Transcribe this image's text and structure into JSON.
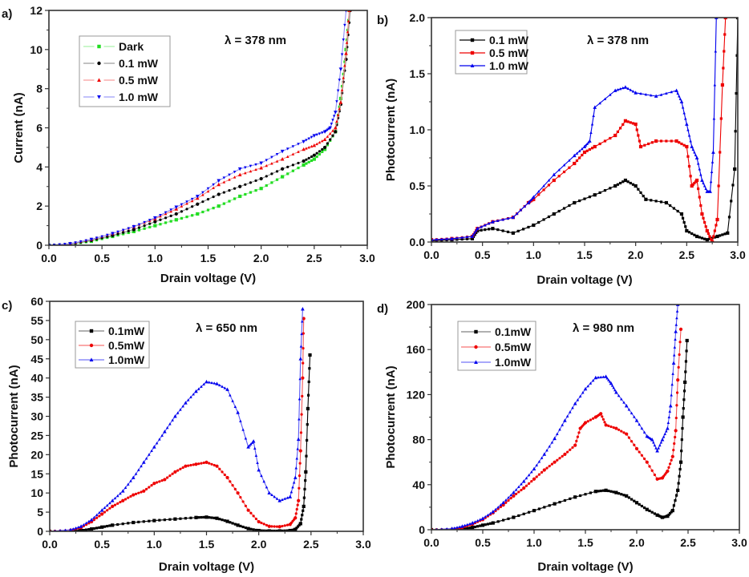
{
  "chart_data": [
    {
      "panel": "a)",
      "type": "line",
      "title": "",
      "annotation": "λ = 378 nm",
      "xlabel": "Drain voltage (V)",
      "ylabel": "Current (nA)",
      "xlim": [
        0,
        3.0
      ],
      "ylim": [
        0,
        12
      ],
      "xticks": [
        "0.0",
        "0.5",
        "1.0",
        "1.5",
        "2.0",
        "2.5",
        "3.0"
      ],
      "yticks": [
        "0",
        "2",
        "4",
        "6",
        "8",
        "10",
        "12"
      ],
      "xtick_values": [
        0,
        0.5,
        1.0,
        1.5,
        2.0,
        2.5,
        3.0
      ],
      "ytick_values": [
        0,
        2,
        4,
        6,
        8,
        10,
        12
      ],
      "grid": false,
      "legend_position": "top-left",
      "series": [
        {
          "name": "Dark",
          "color": "#22dd22",
          "marker": "square",
          "x": [
            0,
            0.2,
            0.4,
            0.6,
            0.8,
            1.0,
            1.2,
            1.4,
            1.6,
            1.8,
            2.0,
            2.2,
            2.4,
            2.5,
            2.6,
            2.7,
            2.75,
            2.8,
            2.83
          ],
          "y": [
            0,
            0.05,
            0.2,
            0.45,
            0.7,
            1.0,
            1.3,
            1.6,
            2.0,
            2.5,
            2.9,
            3.5,
            4.1,
            4.4,
            4.9,
            5.8,
            7.5,
            10.0,
            12.0
          ]
        },
        {
          "name": "0.1 mW",
          "color": "#000000",
          "marker": "circle",
          "x": [
            0,
            0.2,
            0.4,
            0.6,
            0.8,
            1.0,
            1.2,
            1.4,
            1.6,
            1.8,
            2.0,
            2.2,
            2.4,
            2.5,
            2.6,
            2.7,
            2.75,
            2.8,
            2.84
          ],
          "y": [
            0,
            0.05,
            0.25,
            0.5,
            0.8,
            1.2,
            1.6,
            2.1,
            2.6,
            3.0,
            3.4,
            3.9,
            4.3,
            4.6,
            5.0,
            5.8,
            7.2,
            9.5,
            12.0
          ]
        },
        {
          "name": "0.5 mW",
          "color": "#ee0000",
          "marker": "triangle-up",
          "x": [
            0,
            0.2,
            0.4,
            0.6,
            0.8,
            1.0,
            1.2,
            1.4,
            1.6,
            1.8,
            2.0,
            2.2,
            2.4,
            2.5,
            2.6,
            2.7,
            2.75,
            2.8,
            2.83
          ],
          "y": [
            0,
            0.08,
            0.3,
            0.6,
            0.95,
            1.35,
            1.85,
            2.4,
            3.1,
            3.6,
            3.95,
            4.4,
            4.9,
            5.1,
            5.4,
            6.0,
            7.3,
            9.8,
            12.0
          ]
        },
        {
          "name": "1.0 mW",
          "color": "#0000ee",
          "marker": "triangle-down",
          "x": [
            0,
            0.2,
            0.4,
            0.6,
            0.8,
            1.0,
            1.2,
            1.4,
            1.6,
            1.8,
            2.0,
            2.2,
            2.4,
            2.5,
            2.6,
            2.65,
            2.7,
            2.75,
            2.8
          ],
          "y": [
            0,
            0.08,
            0.3,
            0.6,
            0.95,
            1.4,
            1.95,
            2.5,
            3.3,
            3.9,
            4.2,
            4.8,
            5.3,
            5.6,
            5.8,
            6.0,
            6.8,
            9.0,
            12.0
          ]
        }
      ]
    },
    {
      "panel": "b)",
      "type": "line",
      "title": "",
      "annotation": "λ = 378 nm",
      "xlabel": "Drain voltage (V)",
      "ylabel": "Photocurrent (nA)",
      "xlim": [
        0,
        3.0
      ],
      "ylim": [
        0,
        2.0
      ],
      "xticks": [
        "0.0",
        "0.5",
        "1.0",
        "1.5",
        "2.0",
        "2.5",
        "3.0"
      ],
      "yticks": [
        "0.0",
        "0.5",
        "1.0",
        "1.5",
        "2.0"
      ],
      "xtick_values": [
        0,
        0.5,
        1.0,
        1.5,
        2.0,
        2.5,
        3.0
      ],
      "ytick_values": [
        0,
        0.5,
        1.0,
        1.5,
        2.0
      ],
      "grid": false,
      "legend_position": "top-left",
      "series": [
        {
          "name": "0.1 mW",
          "color": "#000000",
          "marker": "square",
          "x": [
            0,
            0.2,
            0.4,
            0.45,
            0.6,
            0.8,
            1.0,
            1.2,
            1.4,
            1.6,
            1.8,
            1.9,
            2.0,
            2.1,
            2.3,
            2.45,
            2.5,
            2.6,
            2.7,
            2.8,
            2.9,
            2.97,
            3.0
          ],
          "y": [
            0.01,
            0.02,
            0.03,
            0.1,
            0.12,
            0.08,
            0.15,
            0.25,
            0.35,
            0.42,
            0.5,
            0.55,
            0.5,
            0.38,
            0.35,
            0.25,
            0.1,
            0.05,
            0.02,
            0.05,
            0.08,
            0.65,
            2.0
          ]
        },
        {
          "name": "0.5 mW",
          "color": "#ee0000",
          "marker": "square",
          "x": [
            0,
            0.2,
            0.4,
            0.45,
            0.6,
            0.8,
            0.95,
            1.0,
            1.2,
            1.4,
            1.5,
            1.6,
            1.8,
            1.9,
            2.0,
            2.05,
            2.2,
            2.4,
            2.5,
            2.55,
            2.6,
            2.65,
            2.7,
            2.75,
            2.8,
            2.85,
            2.88
          ],
          "y": [
            0.02,
            0.03,
            0.05,
            0.12,
            0.18,
            0.22,
            0.35,
            0.38,
            0.55,
            0.7,
            0.8,
            0.85,
            0.95,
            1.08,
            1.05,
            0.85,
            0.9,
            0.9,
            0.85,
            0.5,
            0.55,
            0.25,
            0.1,
            0.0,
            0.2,
            1.4,
            2.0
          ]
        },
        {
          "name": "1.0 mW",
          "color": "#0000ee",
          "marker": "triangle-up",
          "x": [
            0,
            0.2,
            0.4,
            0.45,
            0.6,
            0.8,
            0.95,
            1.0,
            1.2,
            1.4,
            1.5,
            1.55,
            1.6,
            1.8,
            1.9,
            2.0,
            2.2,
            2.4,
            2.45,
            2.5,
            2.55,
            2.6,
            2.65,
            2.7,
            2.73,
            2.76,
            2.79
          ],
          "y": [
            0.02,
            0.03,
            0.05,
            0.12,
            0.18,
            0.22,
            0.35,
            0.4,
            0.6,
            0.77,
            0.85,
            0.9,
            1.2,
            1.35,
            1.38,
            1.33,
            1.3,
            1.35,
            1.25,
            1.05,
            0.85,
            0.75,
            0.55,
            0.45,
            0.45,
            0.8,
            2.0
          ]
        }
      ]
    },
    {
      "panel": "c)",
      "type": "line",
      "title": "",
      "annotation": "λ = 650 nm",
      "xlabel": "Drain voltage (V)",
      "ylabel": "Photocurrent (nA)",
      "xlim": [
        0,
        3.0
      ],
      "ylim": [
        0,
        60
      ],
      "xticks": [
        "0.0",
        "0.5",
        "1.0",
        "1.5",
        "2.0",
        "2.5",
        "3.0"
      ],
      "yticks": [
        "0",
        "5",
        "10",
        "15",
        "20",
        "25",
        "30",
        "35",
        "40",
        "45",
        "50",
        "55",
        "60"
      ],
      "xtick_values": [
        0,
        0.5,
        1.0,
        1.5,
        2.0,
        2.5,
        3.0
      ],
      "ytick_values": [
        0,
        5,
        10,
        15,
        20,
        25,
        30,
        35,
        40,
        45,
        50,
        55,
        60
      ],
      "grid": false,
      "legend_position": "top-left",
      "series": [
        {
          "name": "0.1mW",
          "color": "#000000",
          "marker": "square",
          "x": [
            0,
            0.2,
            0.3,
            0.4,
            0.5,
            0.6,
            0.8,
            1.0,
            1.2,
            1.4,
            1.5,
            1.6,
            1.7,
            1.8,
            1.9,
            2.0,
            2.1,
            2.2,
            2.3,
            2.35,
            2.4,
            2.43,
            2.45,
            2.47,
            2.49
          ],
          "y": [
            0,
            0,
            0.2,
            0.6,
            1.1,
            1.6,
            2.3,
            2.8,
            3.2,
            3.6,
            3.7,
            3.4,
            2.6,
            1.6,
            0.7,
            0.2,
            0.1,
            0.1,
            0.2,
            0.5,
            2.0,
            6.5,
            15.5,
            32.0,
            46.0
          ]
        },
        {
          "name": "0.5mW",
          "color": "#ee0000",
          "marker": "circle",
          "x": [
            0,
            0.2,
            0.3,
            0.4,
            0.5,
            0.6,
            0.7,
            0.8,
            0.9,
            1.0,
            1.1,
            1.2,
            1.3,
            1.4,
            1.5,
            1.6,
            1.7,
            1.8,
            1.9,
            2.0,
            2.1,
            2.2,
            2.3,
            2.35,
            2.38,
            2.4,
            2.42,
            2.43
          ],
          "y": [
            0,
            0.3,
            1.0,
            2.5,
            4.5,
            6.5,
            8.0,
            9.5,
            10.5,
            12.5,
            13.5,
            15.5,
            17.0,
            17.5,
            18.0,
            17.0,
            14.0,
            10.0,
            5.5,
            2.5,
            1.3,
            1.2,
            1.8,
            3.5,
            8.0,
            21.0,
            40.0,
            55.5
          ]
        },
        {
          "name": "1.0mW",
          "color": "#0000ee",
          "marker": "triangle-up",
          "x": [
            0,
            0.2,
            0.3,
            0.4,
            0.5,
            0.6,
            0.7,
            0.8,
            0.9,
            1.0,
            1.1,
            1.2,
            1.3,
            1.4,
            1.5,
            1.6,
            1.7,
            1.8,
            1.9,
            1.95,
            2.0,
            2.1,
            2.2,
            2.3,
            2.35,
            2.38,
            2.4,
            2.42
          ],
          "y": [
            0,
            0.4,
            1.3,
            3.0,
            5.5,
            8.0,
            10.5,
            14.0,
            18.0,
            22.0,
            26.0,
            30.0,
            33.5,
            36.5,
            39.0,
            38.5,
            37.0,
            31.0,
            22.0,
            23.5,
            16.0,
            10.0,
            8.0,
            9.0,
            14.0,
            24.0,
            45.0,
            58.0
          ]
        }
      ]
    },
    {
      "panel": "d)",
      "type": "line",
      "title": "",
      "annotation": "λ = 980 nm",
      "xlabel": "Drain voltage (V)",
      "ylabel": "Photocurrent (nA)",
      "xlim": [
        0,
        3.0
      ],
      "ylim": [
        0,
        200
      ],
      "xticks": [
        "0.0",
        "0.5",
        "1.0",
        "1.5",
        "2.0",
        "2.5",
        "3.0"
      ],
      "yticks": [
        "0",
        "40",
        "80",
        "120",
        "160",
        "200"
      ],
      "xtick_values": [
        0,
        0.5,
        1.0,
        1.5,
        2.0,
        2.5,
        3.0
      ],
      "ytick_values": [
        0,
        40,
        80,
        120,
        160,
        200
      ],
      "grid": false,
      "legend_position": "top-left",
      "series": [
        {
          "name": "0.1mW",
          "color": "#000000",
          "marker": "square",
          "x": [
            0,
            0.2,
            0.3,
            0.4,
            0.5,
            0.6,
            0.8,
            1.0,
            1.2,
            1.4,
            1.6,
            1.7,
            1.8,
            1.9,
            2.0,
            2.1,
            2.2,
            2.25,
            2.3,
            2.35,
            2.4,
            2.43,
            2.45,
            2.47,
            2.49
          ],
          "y": [
            0,
            0,
            0.5,
            2,
            4,
            6,
            11,
            17,
            23,
            29,
            34,
            35,
            33,
            30,
            24,
            18,
            13,
            11,
            12,
            17,
            35,
            60,
            100,
            131,
            168
          ]
        },
        {
          "name": "0.5mW",
          "color": "#ee0000",
          "marker": "circle",
          "x": [
            0,
            0.2,
            0.3,
            0.4,
            0.5,
            0.6,
            0.7,
            0.8,
            0.9,
            1.0,
            1.1,
            1.2,
            1.3,
            1.4,
            1.45,
            1.5,
            1.6,
            1.65,
            1.7,
            1.8,
            1.9,
            2.0,
            2.1,
            2.2,
            2.25,
            2.3,
            2.35,
            2.38,
            2.4,
            2.43
          ],
          "y": [
            0,
            0.5,
            2,
            5,
            9,
            15,
            22,
            30,
            37,
            45,
            53,
            60,
            67,
            75,
            90,
            95,
            100,
            103,
            93,
            90,
            85,
            72,
            60,
            45,
            46,
            52,
            65,
            88,
            133,
            178
          ]
        },
        {
          "name": "1.0mW",
          "color": "#0000ee",
          "marker": "triangle-up",
          "x": [
            0,
            0.2,
            0.3,
            0.4,
            0.5,
            0.6,
            0.7,
            0.8,
            0.9,
            1.0,
            1.1,
            1.2,
            1.3,
            1.4,
            1.5,
            1.6,
            1.7,
            1.75,
            1.8,
            1.9,
            2.0,
            2.1,
            2.15,
            2.2,
            2.25,
            2.3,
            2.33,
            2.36,
            2.38,
            2.4
          ],
          "y": [
            0,
            1,
            3,
            6,
            10,
            16,
            24,
            33,
            43,
            54,
            67,
            81,
            97,
            112,
            125,
            135,
            136,
            130,
            122,
            110,
            97,
            83,
            80,
            70,
            80,
            90,
            110,
            148,
            176,
            200
          ]
        }
      ]
    }
  ]
}
